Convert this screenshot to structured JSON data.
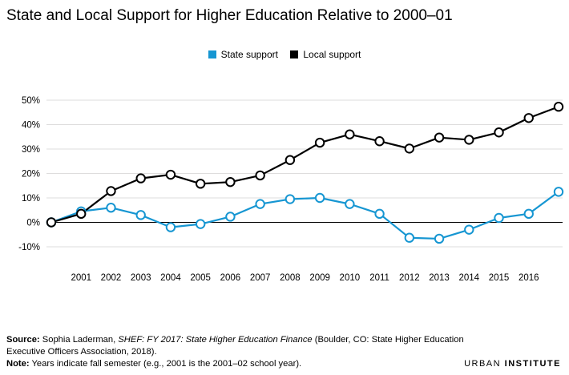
{
  "chart_data": {
    "type": "line",
    "title": "State and Local Support for Higher Education Relative to 2000–01",
    "xlabel": "",
    "ylabel": "",
    "x": [
      "",
      "2001",
      "2002",
      "2003",
      "2004",
      "2005",
      "2006",
      "2007",
      "2008",
      "2009",
      "2010",
      "2011",
      "2012",
      "2013",
      "2014",
      "2015",
      "2016",
      ""
    ],
    "x_values": [
      2000,
      2001,
      2002,
      2003,
      2004,
      2005,
      2006,
      2007,
      2008,
      2009,
      2010,
      2011,
      2012,
      2013,
      2014,
      2015,
      2016,
      2017
    ],
    "ylim": [
      -10,
      50
    ],
    "yticks": [
      -10,
      0,
      10,
      20,
      30,
      40,
      50
    ],
    "ytick_labels": [
      "-10%",
      "0%",
      "10%",
      "20%",
      "30%",
      "40%",
      "50%"
    ],
    "grid": true,
    "legend_position": "top-center",
    "series": [
      {
        "name": "State support",
        "color": "#1696d2",
        "values": [
          0,
          4.5,
          6,
          3,
          -2,
          -0.7,
          2.3,
          7.5,
          9.5,
          10,
          7.5,
          3.5,
          -6.3,
          -6.7,
          -3,
          1.8,
          3.5,
          12.5
        ]
      },
      {
        "name": "Local support",
        "color": "#000000",
        "values": [
          0,
          3.5,
          12.8,
          18,
          19.5,
          15.8,
          16.5,
          19.2,
          25.5,
          32.6,
          36,
          33.2,
          30.2,
          34.7,
          33.8,
          36.8,
          42.7,
          47.3
        ]
      }
    ]
  },
  "footer": {
    "source_label": "Source:",
    "source_author": "Sophia Laderman, ",
    "source_title": "SHEF: FY 2017: State Higher Education Finance",
    "source_rest": " (Boulder, CO: State Higher Education",
    "source_line2": "Executive Officers Association, 2018).",
    "note_label": "Note:",
    "note_text": " Years indicate fall semester (e.g., 2001 is the 2001–02 school year)."
  },
  "brand": {
    "part1": "URBAN",
    "part2": "INSTITUTE"
  }
}
